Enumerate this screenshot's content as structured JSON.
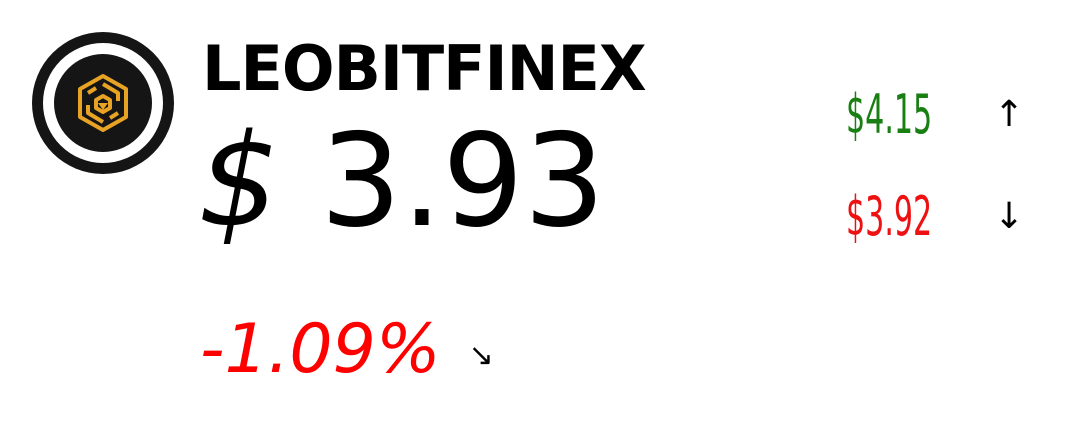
{
  "coin": {
    "name": "LEOBITFINEX",
    "logo_icon": "unus-sed-leo-logo-icon",
    "price_symbol": "$",
    "price_value": "3.93",
    "change": "-1.09%",
    "change_direction_icon": "arrow-down-right-icon",
    "high": "$4.15",
    "high_icon": "arrow-up-icon",
    "low": "$3.92",
    "low_icon": "arrow-down-icon"
  },
  "colors": {
    "negative": "#ff0000",
    "high": "#1a7f12",
    "low": "#ee1111",
    "logo_gold": "#e8a324"
  }
}
